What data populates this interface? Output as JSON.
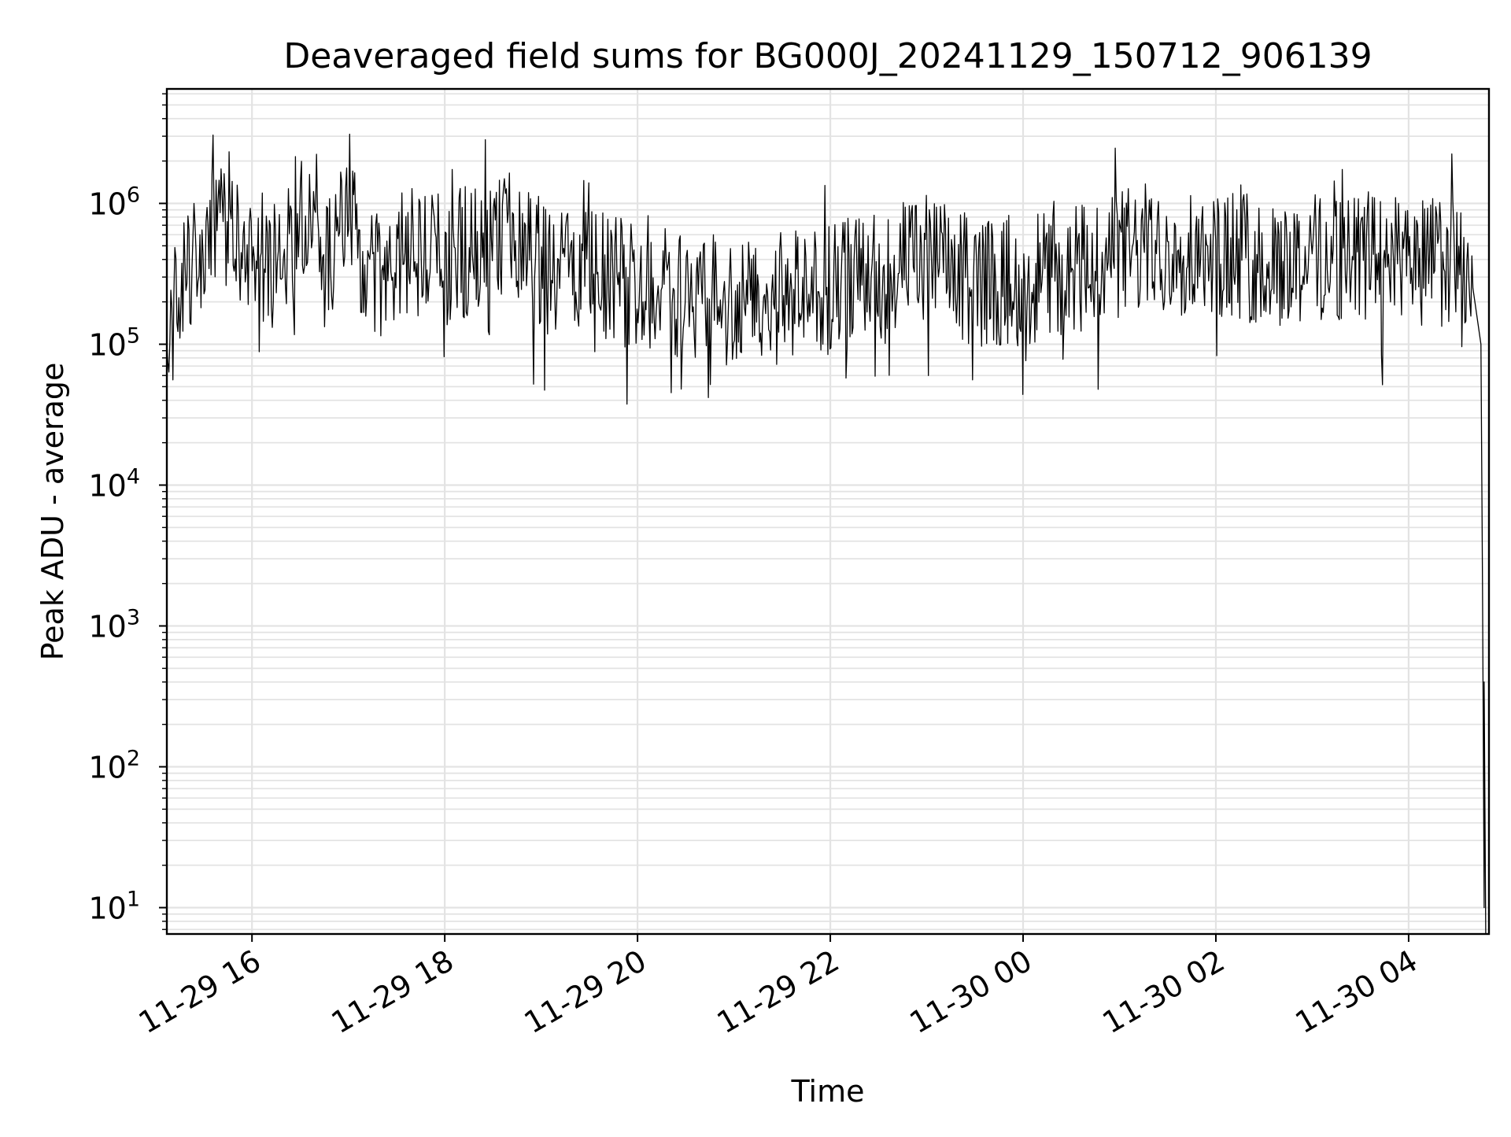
{
  "chart_data": {
    "type": "line",
    "title": "Deaveraged field sums for BG000J_20241129_150712_906139",
    "xlabel": "Time",
    "ylabel": "Peak ADU - average",
    "x_scale": "time",
    "y_scale": "log",
    "xlim": [
      "11-29 15:07",
      "11-30 04:50"
    ],
    "ylim": [
      6.5,
      6500000
    ],
    "grid": true,
    "x_ticks": [
      "11-29 16",
      "11-29 18",
      "11-29 20",
      "11-29 22",
      "11-30 00",
      "11-30 02",
      "11-30 04"
    ],
    "y_ticks": [
      {
        "base": "10",
        "exp": "1"
      },
      {
        "base": "10",
        "exp": "2"
      },
      {
        "base": "10",
        "exp": "3"
      },
      {
        "base": "10",
        "exp": "4"
      },
      {
        "base": "10",
        "exp": "5"
      },
      {
        "base": "10",
        "exp": "6"
      }
    ],
    "series": [
      {
        "color": "#000000",
        "x": [
          "11-29 15:07",
          "11-29 15:15",
          "11-29 15:30",
          "11-29 15:45",
          "11-29 16:00",
          "11-29 16:15",
          "11-29 16:30",
          "11-29 16:45",
          "11-29 17:00",
          "11-29 17:15",
          "11-29 17:30",
          "11-29 17:45",
          "11-29 18:00",
          "11-29 18:15",
          "11-29 18:30",
          "11-29 18:45",
          "11-29 19:00",
          "11-29 19:30",
          "11-29 20:00",
          "11-29 20:30",
          "11-29 21:00",
          "11-29 21:30",
          "11-29 22:00",
          "11-29 22:30",
          "11-29 23:00",
          "11-29 23:30",
          "11-30 00:00",
          "11-30 00:30",
          "11-30 01:00",
          "11-30 01:30",
          "11-30 02:00",
          "11-30 02:30",
          "11-30 03:00",
          "11-30 03:30",
          "11-30 04:00",
          "11-30 04:30",
          "11-30 04:40",
          "11-30 04:45",
          "11-30 04:46",
          "11-30 04:47"
        ],
        "y": [
          100000,
          300000,
          500000,
          900000,
          500000,
          400000,
          1200000,
          400000,
          900000,
          300000,
          450000,
          500000,
          450000,
          500000,
          600000,
          700000,
          400000,
          350000,
          300000,
          250000,
          220000,
          240000,
          280000,
          350000,
          450000,
          300000,
          320000,
          380000,
          500000,
          550000,
          500000,
          420000,
          460000,
          480000,
          450000,
          420000,
          250000,
          100000,
          1900,
          10
        ]
      }
    ]
  }
}
